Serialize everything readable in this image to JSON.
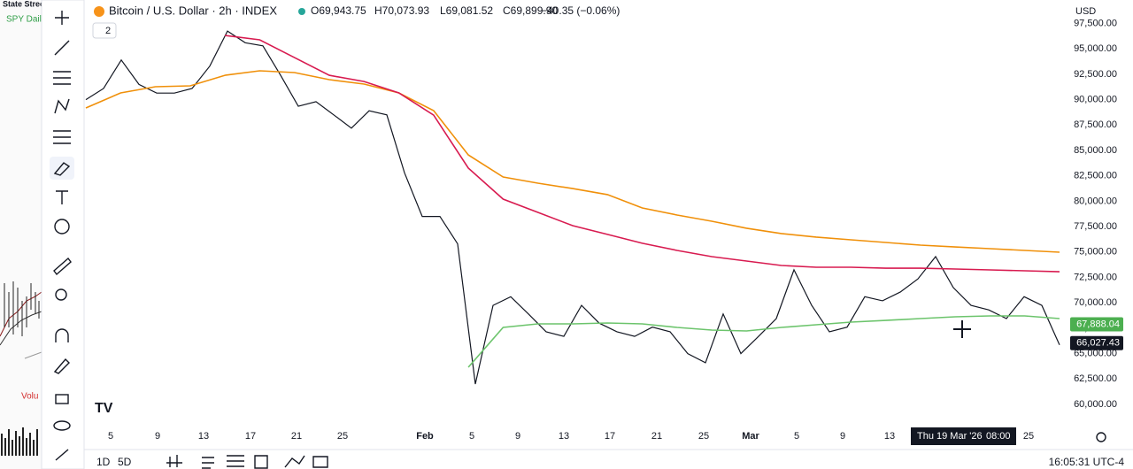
{
  "side_panel": {
    "title": "State Street",
    "subtitle": "SPY Daily",
    "volume_label": "Volu"
  },
  "header": {
    "symbol": "Bitcoin / U.S. Dollar · 2h · INDEX",
    "open": "O69,943.75",
    "high": "H70,073.93",
    "low": "L69,081.52",
    "close": "C69,899.90",
    "change": "−40.35 (−0.06%)",
    "indicator_count": "2"
  },
  "currency": "USD",
  "chart_data": {
    "type": "line",
    "ylim": [
      58170,
      99810
    ],
    "yticks": [
      {
        "value": 97500,
        "label": "97,500.00"
      },
      {
        "value": 95000,
        "label": "95,000.00"
      },
      {
        "value": 92500,
        "label": "92,500.00"
      },
      {
        "value": 90000,
        "label": "90,000.00"
      },
      {
        "value": 87500,
        "label": "87,500.00"
      },
      {
        "value": 85000,
        "label": "85,000.00"
      },
      {
        "value": 82500,
        "label": "82,500.00"
      },
      {
        "value": 80000,
        "label": "80,000.00"
      },
      {
        "value": 77500,
        "label": "77,500.00"
      },
      {
        "value": 75000,
        "label": "75,000.00"
      },
      {
        "value": 72500,
        "label": "72,500.00"
      },
      {
        "value": 70000,
        "label": "70,000.00"
      },
      {
        "value": 67500,
        "label": "67,500.00"
      },
      {
        "value": 65000,
        "label": "65,000.00"
      },
      {
        "value": 62500,
        "label": "62,500.00"
      },
      {
        "value": 60000,
        "label": "60,000.00"
      }
    ],
    "x_tick_labels": [
      "5",
      "9",
      "13",
      "17",
      "21",
      "25",
      "Feb",
      "5",
      "9",
      "13",
      "17",
      "21",
      "25",
      "Mar",
      "5",
      "9",
      "13",
      "25"
    ],
    "crosshair_date": "Thu 19 Mar '26",
    "crosshair_time": "08:00",
    "series": [
      {
        "color": "#131722",
        "values": [
          90000,
          91100,
          93900,
          91500,
          90650,
          90650,
          91100,
          93300,
          96750,
          95600,
          95300,
          92400,
          89350,
          89800,
          88500,
          87200,
          88900,
          88500,
          82800,
          78500,
          78500,
          75800,
          62000,
          69750,
          70600,
          68900,
          67150,
          66700,
          69750,
          68000,
          67150,
          66700,
          67600,
          67150,
          65000,
          64100,
          68900,
          65000,
          66700,
          68450,
          73250,
          69750,
          67150,
          67600,
          70600,
          70200,
          71050,
          72350,
          74550,
          71500,
          69750,
          69300,
          68450,
          70600,
          69750,
          65850
        ]
      },
      {
        "color": "#f0900a",
        "values": [
          89180,
          90660,
          91270,
          91360,
          92400,
          92840,
          92670,
          91970,
          91530,
          90660,
          88920,
          84560,
          82390,
          81780,
          81250,
          80650,
          79340,
          78640,
          78030,
          77340,
          76820,
          76470,
          76200,
          75940,
          75680,
          75500,
          75330,
          75160,
          74980
        ]
      },
      {
        "color": "#d81b50",
        "values": [
          null,
          null,
          null,
          null,
          96320,
          95890,
          94140,
          92400,
          91790,
          90660,
          88480,
          83260,
          80210,
          78900,
          77600,
          76730,
          75860,
          75160,
          74550,
          74110,
          73680,
          73500,
          73500,
          73410,
          73410,
          73330,
          73240,
          73150,
          73060
        ]
      },
      {
        "color": "#6cc46c",
        "values": [
          null,
          null,
          null,
          null,
          null,
          null,
          null,
          null,
          null,
          null,
          null,
          63660,
          67580,
          67930,
          67930,
          68010,
          67930,
          67580,
          67320,
          67230,
          67580,
          67840,
          68100,
          68270,
          68450,
          68620,
          68710,
          68710,
          68450
        ]
      }
    ],
    "price_labels": [
      {
        "value": 67888.04,
        "label": "67,888.04",
        "color": "#4caf50"
      },
      {
        "value": 66027.43,
        "label": "66,027.43",
        "color": "#131722"
      }
    ]
  },
  "footer": {
    "range_1d": "1D",
    "range_5d": "5D",
    "clock": "16:05:31 UTC-4"
  }
}
